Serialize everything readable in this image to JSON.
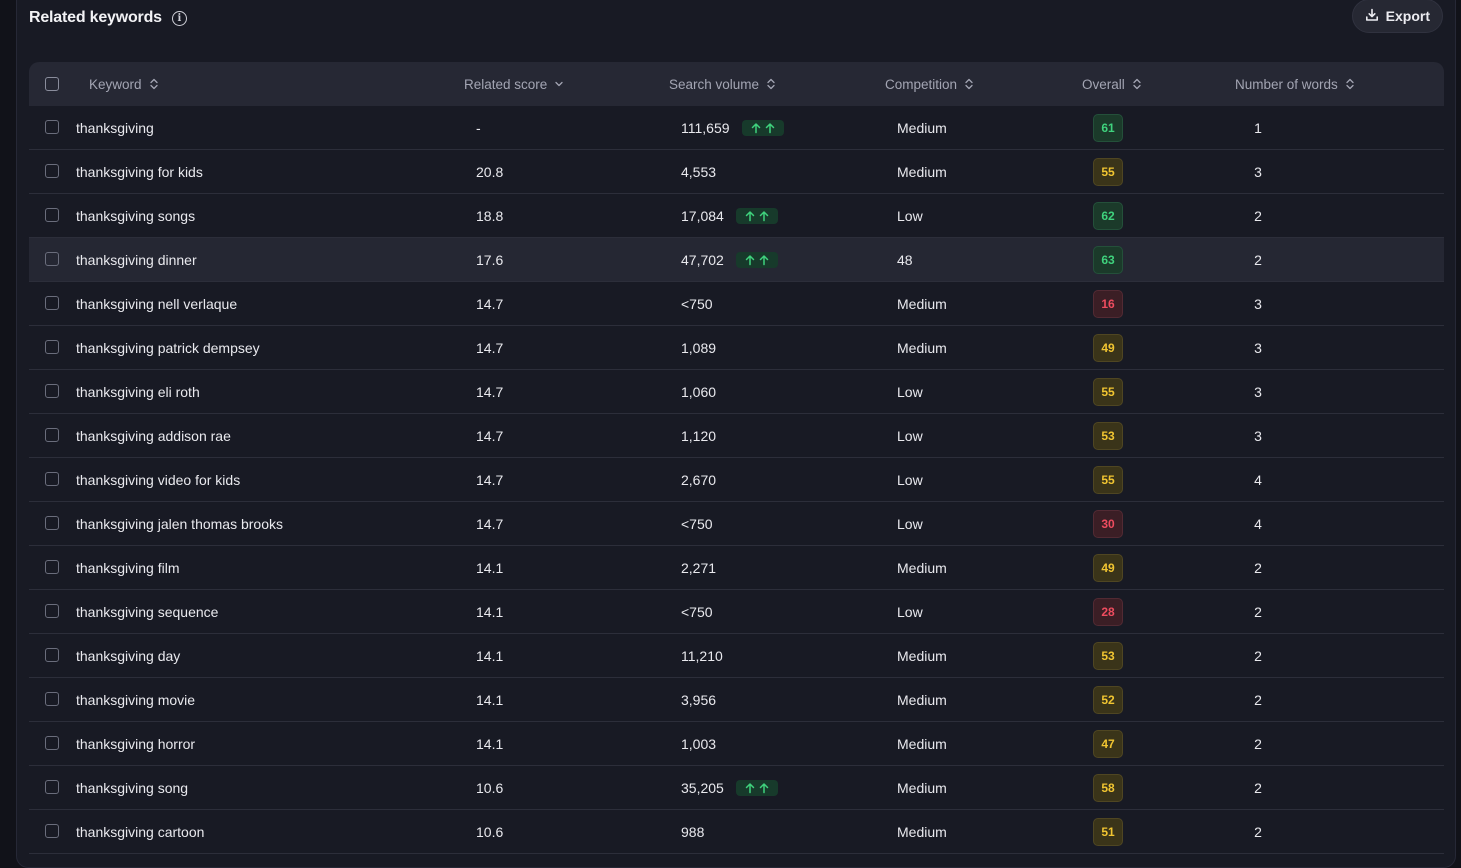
{
  "header": {
    "title": "Related keywords",
    "export_label": "Export"
  },
  "table": {
    "columns": {
      "keyword": "Keyword",
      "related_score": "Related score",
      "search_volume": "Search volume",
      "competition": "Competition",
      "overall": "Overall",
      "words": "Number of words"
    },
    "rows": [
      {
        "keyword": "thanksgiving",
        "score": "-",
        "volume": "111,659",
        "trend": true,
        "competition": "Medium",
        "overall": "61",
        "level": "green",
        "words": "1"
      },
      {
        "keyword": "thanksgiving for kids",
        "score": "20.8",
        "volume": "4,553",
        "trend": false,
        "competition": "Medium",
        "overall": "55",
        "level": "yellow",
        "words": "3"
      },
      {
        "keyword": "thanksgiving songs",
        "score": "18.8",
        "volume": "17,084",
        "trend": true,
        "competition": "Low",
        "overall": "62",
        "level": "green",
        "words": "2"
      },
      {
        "keyword": "thanksgiving dinner",
        "score": "17.6",
        "volume": "47,702",
        "trend": true,
        "competition": "48",
        "overall": "63",
        "level": "green",
        "words": "2",
        "highlight": true
      },
      {
        "keyword": "thanksgiving nell verlaque",
        "score": "14.7",
        "volume": "<750",
        "trend": false,
        "competition": "Medium",
        "overall": "16",
        "level": "red",
        "words": "3"
      },
      {
        "keyword": "thanksgiving patrick dempsey",
        "score": "14.7",
        "volume": "1,089",
        "trend": false,
        "competition": "Medium",
        "overall": "49",
        "level": "yellow",
        "words": "3"
      },
      {
        "keyword": "thanksgiving eli roth",
        "score": "14.7",
        "volume": "1,060",
        "trend": false,
        "competition": "Low",
        "overall": "55",
        "level": "yellow",
        "words": "3"
      },
      {
        "keyword": "thanksgiving addison rae",
        "score": "14.7",
        "volume": "1,120",
        "trend": false,
        "competition": "Low",
        "overall": "53",
        "level": "yellow",
        "words": "3"
      },
      {
        "keyword": "thanksgiving video for kids",
        "score": "14.7",
        "volume": "2,670",
        "trend": false,
        "competition": "Low",
        "overall": "55",
        "level": "yellow",
        "words": "4"
      },
      {
        "keyword": "thanksgiving jalen thomas brooks",
        "score": "14.7",
        "volume": "<750",
        "trend": false,
        "competition": "Low",
        "overall": "30",
        "level": "red",
        "words": "4"
      },
      {
        "keyword": "thanksgiving film",
        "score": "14.1",
        "volume": "2,271",
        "trend": false,
        "competition": "Medium",
        "overall": "49",
        "level": "yellow",
        "words": "2"
      },
      {
        "keyword": "thanksgiving sequence",
        "score": "14.1",
        "volume": "<750",
        "trend": false,
        "competition": "Low",
        "overall": "28",
        "level": "red",
        "words": "2"
      },
      {
        "keyword": "thanksgiving day",
        "score": "14.1",
        "volume": "11,210",
        "trend": false,
        "competition": "Medium",
        "overall": "53",
        "level": "yellow",
        "words": "2"
      },
      {
        "keyword": "thanksgiving movie",
        "score": "14.1",
        "volume": "3,956",
        "trend": false,
        "competition": "Medium",
        "overall": "52",
        "level": "yellow",
        "words": "2"
      },
      {
        "keyword": "thanksgiving horror",
        "score": "14.1",
        "volume": "1,003",
        "trend": false,
        "competition": "Medium",
        "overall": "47",
        "level": "yellow",
        "words": "2"
      },
      {
        "keyword": "thanksgiving song",
        "score": "10.6",
        "volume": "35,205",
        "trend": true,
        "competition": "Medium",
        "overall": "58",
        "level": "yellow",
        "words": "2"
      },
      {
        "keyword": "thanksgiving cartoon",
        "score": "10.6",
        "volume": "988",
        "trend": false,
        "competition": "Medium",
        "overall": "51",
        "level": "yellow",
        "words": "2"
      }
    ]
  },
  "colors": {
    "green": "#3fd27d",
    "yellow": "#f1c531",
    "red": "#ee4c5f"
  }
}
